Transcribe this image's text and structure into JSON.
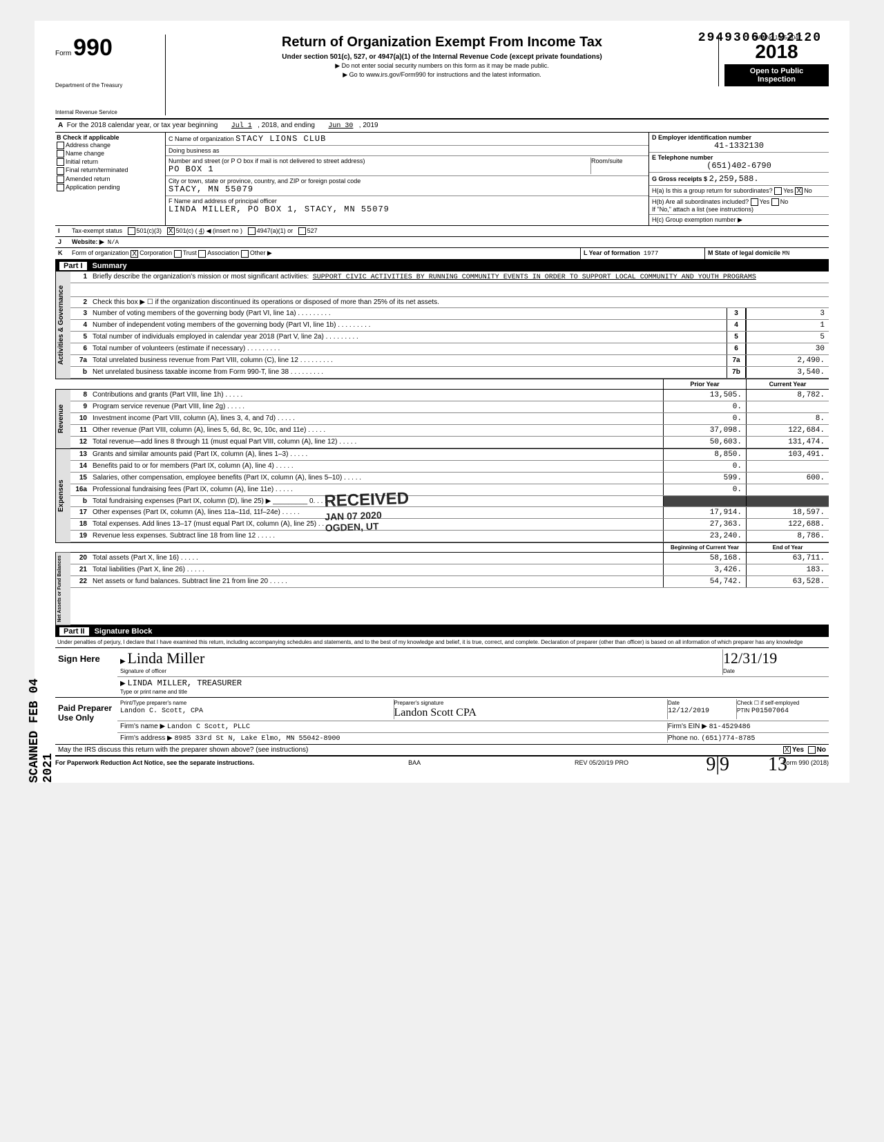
{
  "dln": "29493060192120",
  "form": {
    "number": "990",
    "dept1": "Department of the Treasury",
    "dept2": "Internal Revenue Service"
  },
  "title": {
    "main": "Return of Organization Exempt From Income Tax",
    "sub": "Under section 501(c), 527, or 4947(a)(1) of the Internal Revenue Code (except private foundations)",
    "note1": "▶ Do not enter social security numbers on this form as it may be made public.",
    "note2": "▶ Go to www.irs.gov/Form990 for instructions and the latest information."
  },
  "yearbox": {
    "omb": "OMB No 1545-0047",
    "year": "2018",
    "open1": "Open to Public",
    "open2": "Inspection"
  },
  "lineA": {
    "label": "For the 2018 calendar year, or tax year beginning",
    "begin": "Jul 1",
    "mid": ", 2018, and ending",
    "end": "Jun 30",
    "tail": ", 2019"
  },
  "colB": {
    "hdr": "B  Check if applicable",
    "items": [
      "Address change",
      "Name change",
      "Initial return",
      "Final return/terminated",
      "Amended return",
      "Application pending"
    ]
  },
  "colC": {
    "nameLbl": "C Name of organization",
    "name": "STACY LIONS CLUB",
    "dbaLbl": "Doing business as",
    "dba": "",
    "addrLbl": "Number and street (or P O box if mail is not delivered to street address)",
    "room": "Room/suite",
    "addr": "PO BOX 1",
    "cityLbl": "City or town, state or province, country, and ZIP or foreign postal code",
    "city": "STACY, MN 55079",
    "fLbl": "F Name and address of principal officer",
    "fVal": "LINDA MILLER, PO BOX 1, STACY, MN 55079"
  },
  "colD": {
    "einLbl": "D Employer identification number",
    "ein": "41-1332130",
    "telLbl": "E Telephone number",
    "tel": "(651)402-6790",
    "grossLbl": "G Gross receipts $",
    "gross": "2,259,588.",
    "ha": "H(a) Is this a group return for subordinates?",
    "haYes": "Yes",
    "haNo": "No",
    "hb": "H(b) Are all subordinates included?",
    "hbNote": "If \"No,\" attach a list (see instructions)",
    "hc": "H(c) Group exemption number ▶"
  },
  "lineI": {
    "lbl": "Tax-exempt status",
    "c3": "501(c)(3)",
    "c": "501(c) (",
    "cnum": "4",
    "cins": ") ◀ (insert no )",
    "a": "4947(a)(1) or",
    "s": "527"
  },
  "lineJ": {
    "lbl": "Website: ▶",
    "val": "N/A"
  },
  "lineK": {
    "lbl": "Form of organization",
    "corp": "Corporation",
    "trust": "Trust",
    "assoc": "Association",
    "other": "Other ▶",
    "yrLbl": "L Year of formation",
    "yr": "1977",
    "stLbl": "M State of legal domicile",
    "st": "MN"
  },
  "part1": {
    "num": "Part I",
    "title": "Summary"
  },
  "sec1": {
    "tab": "Activities & Governance",
    "l1": {
      "n": "1",
      "d": "Briefly describe the organization's mission or most significant activities:",
      "v": "SUPPORT CIVIC ACTIVITIES BY RUNNING COMMUNITY EVENTS IN ORDER TO SUPPORT LOCAL COMMUNITY AND YOUTH PROGRAMS"
    },
    "l2": {
      "n": "2",
      "d": "Check this box ▶ ☐ if the organization discontinued its operations or disposed of more than 25% of its net assets."
    },
    "rows": [
      {
        "n": "3",
        "d": "Number of voting members of the governing body (Part VI, line 1a)",
        "box": "3",
        "v": "3"
      },
      {
        "n": "4",
        "d": "Number of independent voting members of the governing body (Part VI, line 1b)",
        "box": "4",
        "v": "1"
      },
      {
        "n": "5",
        "d": "Total number of individuals employed in calendar year 2018 (Part V, line 2a)",
        "box": "5",
        "v": "5"
      },
      {
        "n": "6",
        "d": "Total number of volunteers (estimate if necessary)",
        "box": "6",
        "v": "30"
      },
      {
        "n": "7a",
        "d": "Total unrelated business revenue from Part VIII, column (C), line 12",
        "box": "7a",
        "v": "2,490."
      },
      {
        "n": "b",
        "d": "Net unrelated business taxable income from Form 990-T, line 38",
        "box": "7b",
        "v": "3,540."
      }
    ]
  },
  "colHdr": {
    "prior": "Prior Year",
    "current": "Current Year"
  },
  "sec2": {
    "tab": "Revenue",
    "rows": [
      {
        "n": "8",
        "d": "Contributions and grants (Part VIII, line 1h)",
        "p": "13,505.",
        "c": "8,782."
      },
      {
        "n": "9",
        "d": "Program service revenue (Part VIII, line 2g)",
        "p": "0.",
        "c": ""
      },
      {
        "n": "10",
        "d": "Investment income (Part VIII, column (A), lines 3, 4, and 7d)",
        "p": "0.",
        "c": "8."
      },
      {
        "n": "11",
        "d": "Other revenue (Part VIII, column (A), lines 5, 6d, 8c, 9c, 10c, and 11e)",
        "p": "37,098.",
        "c": "122,684."
      },
      {
        "n": "12",
        "d": "Total revenue—add lines 8 through 11 (must equal Part VIII, column (A), line 12)",
        "p": "50,603.",
        "c": "131,474."
      }
    ]
  },
  "sec3": {
    "tab": "Expenses",
    "rows": [
      {
        "n": "13",
        "d": "Grants and similar amounts paid (Part IX, column (A), lines 1–3)",
        "p": "8,850.",
        "c": "103,491."
      },
      {
        "n": "14",
        "d": "Benefits paid to or for members (Part IX, column (A), line 4)",
        "p": "0.",
        "c": ""
      },
      {
        "n": "15",
        "d": "Salaries, other compensation, employee benefits (Part IX, column (A), lines 5–10)",
        "p": "599.",
        "c": "600."
      },
      {
        "n": "16a",
        "d": "Professional fundraising fees (Part IX, column (A), line 11e)",
        "p": "0.",
        "c": ""
      },
      {
        "n": "b",
        "d": "Total fundraising expenses (Part IX, column (D), line 25) ▶  _________ 0.",
        "p": "SHADE",
        "c": "SHADE"
      },
      {
        "n": "17",
        "d": "Other expenses (Part IX, column (A), lines 11a–11d, 11f–24e)",
        "p": "17,914.",
        "c": "18,597."
      },
      {
        "n": "18",
        "d": "Total expenses. Add lines 13–17 (must equal Part IX, column (A), line 25)",
        "p": "27,363.",
        "c": "122,688."
      },
      {
        "n": "19",
        "d": "Revenue less expenses. Subtract line 18 from line 12",
        "p": "23,240.",
        "c": "8,786."
      }
    ]
  },
  "colHdr2": {
    "prior": "Beginning of Current Year",
    "current": "End of Year"
  },
  "sec4": {
    "tab": "Net Assets or Fund Balances",
    "rows": [
      {
        "n": "20",
        "d": "Total assets (Part X, line 16)",
        "p": "58,168.",
        "c": "63,711."
      },
      {
        "n": "21",
        "d": "Total liabilities (Part X, line 26)",
        "p": "3,426.",
        "c": "183."
      },
      {
        "n": "22",
        "d": "Net assets or fund balances. Subtract line 21 from line 20",
        "p": "54,742.",
        "c": "63,528."
      }
    ]
  },
  "part2": {
    "num": "Part II",
    "title": "Signature Block"
  },
  "perjury": "Under penalties of perjury, I declare that I have examined this return, including accompanying schedules and statements, and to the best of my knowledge and belief, it is true, correct, and complete. Declaration of preparer (other than officer) is based on all information of which preparer has any knowledge",
  "sign": {
    "hdr": "Sign Here",
    "sig": "Linda Miller",
    "sigLbl": "Signature of officer",
    "date": "12/31/19",
    "dateLbl": "Date",
    "name": "LINDA MILLER, TREASURER",
    "nameLbl": "Type or print name and title"
  },
  "prep": {
    "hdr": "Paid Preparer Use Only",
    "nameLbl": "Print/Type preparer's name",
    "name": "Landon C. Scott, CPA",
    "sigLbl": "Preparer's signature",
    "sig": "Landon Scott CPA",
    "dateLbl": "Date",
    "date": "12/12/2019",
    "ptinLbl": "PTIN",
    "ptin": "P01507064",
    "self": "Check ☐ if self-employed",
    "firmLbl": "Firm's name ▶",
    "firm": "Landon C Scott, PLLC",
    "feinLbl": "Firm's EIN ▶",
    "fein": "81-4529486",
    "addrLbl": "Firm's address ▶",
    "addr": "8985 33rd St N, Lake Elmo, MN 55042-8900",
    "phLbl": "Phone no.",
    "ph": "(651)774-8785"
  },
  "discuss": {
    "q": "May the IRS discuss this return with the preparer shown above? (see instructions)",
    "yes": "Yes",
    "no": "No"
  },
  "footer": {
    "pra": "For Paperwork Reduction Act Notice, see the separate instructions.",
    "baa": "BAA",
    "rev": "REV 05/20/19 PRO",
    "form": "Form 990 (2018)"
  },
  "stamp": {
    "r": "RECEIVED",
    "d": "JAN 07 2020",
    "o": "OGDEN, UT"
  },
  "scanned": "SCANNED FEB 04 2021",
  "hand": {
    "a": "9|9",
    "b": "13"
  }
}
